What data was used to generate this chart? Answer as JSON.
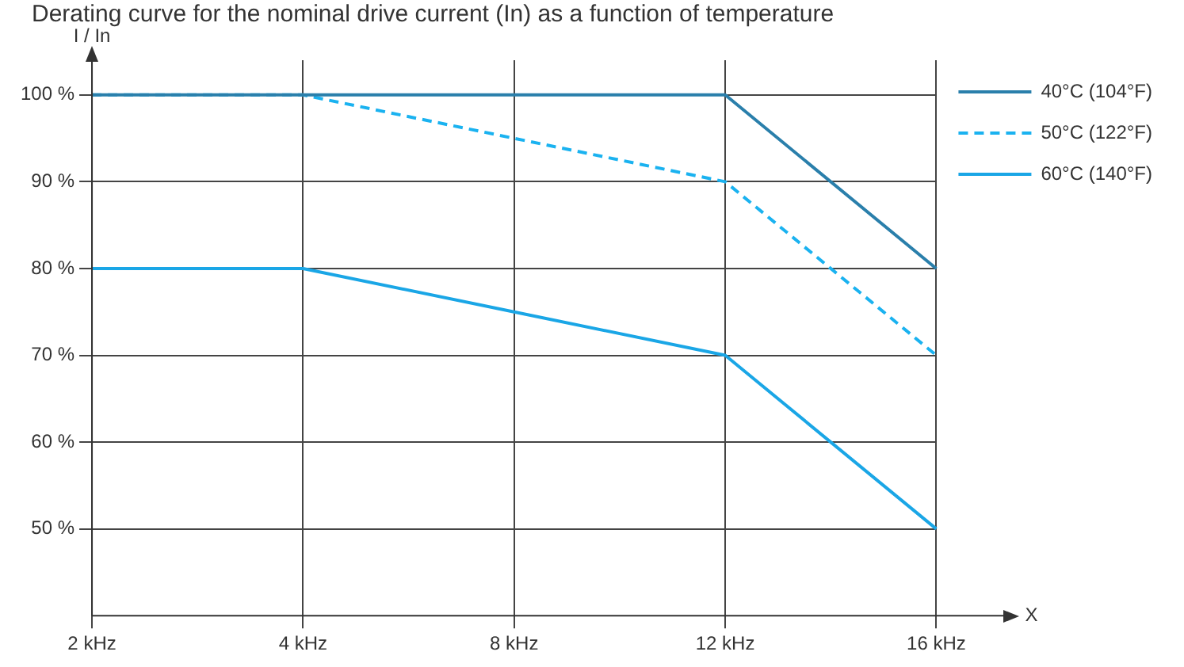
{
  "chart_data": {
    "type": "line",
    "title": "Derating curve for the nominal drive current (In) as a function of temperature",
    "xlabel": "X",
    "ylabel": "I / In",
    "categories": [
      "2 kHz",
      "4 kHz",
      "8 kHz",
      "12 kHz",
      "16 kHz"
    ],
    "series": [
      {
        "name": "40°C (104°F)",
        "color": "#2a7fab",
        "values": [
          100,
          100,
          100,
          100,
          80
        ],
        "line_style": "solid"
      },
      {
        "name": "50°C (122°F)",
        "color": "#1ab2f0",
        "values": [
          100,
          100,
          95,
          90,
          70
        ],
        "line_style": "dashed"
      },
      {
        "name": "60°C (140°F)",
        "color": "#1aa6e6",
        "values": [
          80,
          80,
          75,
          70,
          50
        ],
        "line_style": "solid"
      }
    ],
    "ylim": [
      40,
      104
    ],
    "yticks": [
      {
        "value": 50,
        "label": "50 %"
      },
      {
        "value": 60,
        "label": "60 %"
      },
      {
        "value": 70,
        "label": "70 %"
      },
      {
        "value": 80,
        "label": "80 %"
      },
      {
        "value": 90,
        "label": "90 %"
      },
      {
        "value": 100,
        "label": "100 %"
      }
    ],
    "grid": true,
    "legend": "right",
    "marker": "none"
  }
}
